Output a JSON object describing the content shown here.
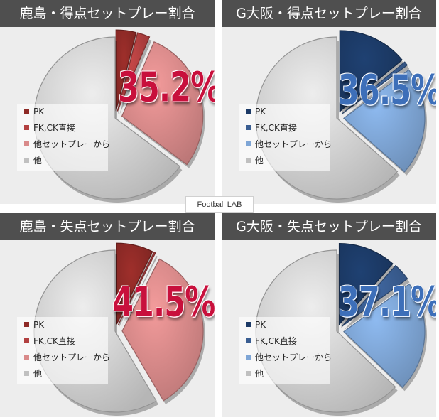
{
  "watermark": "Football LAB",
  "colors": {
    "header_bg": "#4f4f4f",
    "panel_bg": "#ededed",
    "pct_red": "#c8103c",
    "pct_blue": "#3d6fb9"
  },
  "chart_data": [
    {
      "type": "pie",
      "title": "鹿島・得点セットプレー割合",
      "highlight_label": "35.2%",
      "theme": "red",
      "legend_position": "bottom-left",
      "series": [
        {
          "name": "PK",
          "value": 4.0,
          "color": "#8e2a26",
          "exploded": true
        },
        {
          "name": "FK,CK直接",
          "value": 2.5,
          "color": "#b24040",
          "exploded": true
        },
        {
          "name": "他セットプレーから",
          "value": 28.7,
          "color": "#d98a8a",
          "exploded": true
        },
        {
          "name": "他",
          "value": 64.8,
          "color": "#d4d4d4",
          "exploded": false
        }
      ]
    },
    {
      "type": "pie",
      "title": "G大阪・得点セットプレー割合",
      "highlight_label": "36.5%",
      "theme": "blue",
      "legend_position": "bottom-left",
      "series": [
        {
          "name": "PK",
          "value": 14.0,
          "color": "#1c3a66",
          "exploded": true
        },
        {
          "name": "FK,CK直接",
          "value": 0.8,
          "color": "#3a5e92",
          "exploded": true
        },
        {
          "name": "他セットプレーから",
          "value": 21.7,
          "color": "#7fa6d6",
          "exploded": true
        },
        {
          "name": "他",
          "value": 63.5,
          "color": "#d4d4d4",
          "exploded": false
        }
      ]
    },
    {
      "type": "pie",
      "title": "鹿島・失点セットプレー割合",
      "highlight_label": "41.5%",
      "theme": "red",
      "legend_position": "bottom-left",
      "series": [
        {
          "name": "PK",
          "value": 7.3,
          "color": "#8e2a26",
          "exploded": true
        },
        {
          "name": "FK,CK直接",
          "value": 0.3,
          "color": "#b24040",
          "exploded": true
        },
        {
          "name": "他セットプレーから",
          "value": 33.9,
          "color": "#d98a8a",
          "exploded": true
        },
        {
          "name": "他",
          "value": 58.5,
          "color": "#d4d4d4",
          "exploded": false
        }
      ]
    },
    {
      "type": "pie",
      "title": "G大阪・失点セットプレー割合",
      "highlight_label": "37.1%",
      "theme": "blue",
      "legend_position": "bottom-left",
      "series": [
        {
          "name": "PK",
          "value": 11.5,
          "color": "#1c3a66",
          "exploded": true
        },
        {
          "name": "FK,CK直接",
          "value": 3.5,
          "color": "#3a5e92",
          "exploded": true
        },
        {
          "name": "他セットプレーから",
          "value": 22.1,
          "color": "#7fa6d6",
          "exploded": true
        },
        {
          "name": "他",
          "value": 62.9,
          "color": "#d4d4d4",
          "exploded": false
        }
      ]
    }
  ]
}
